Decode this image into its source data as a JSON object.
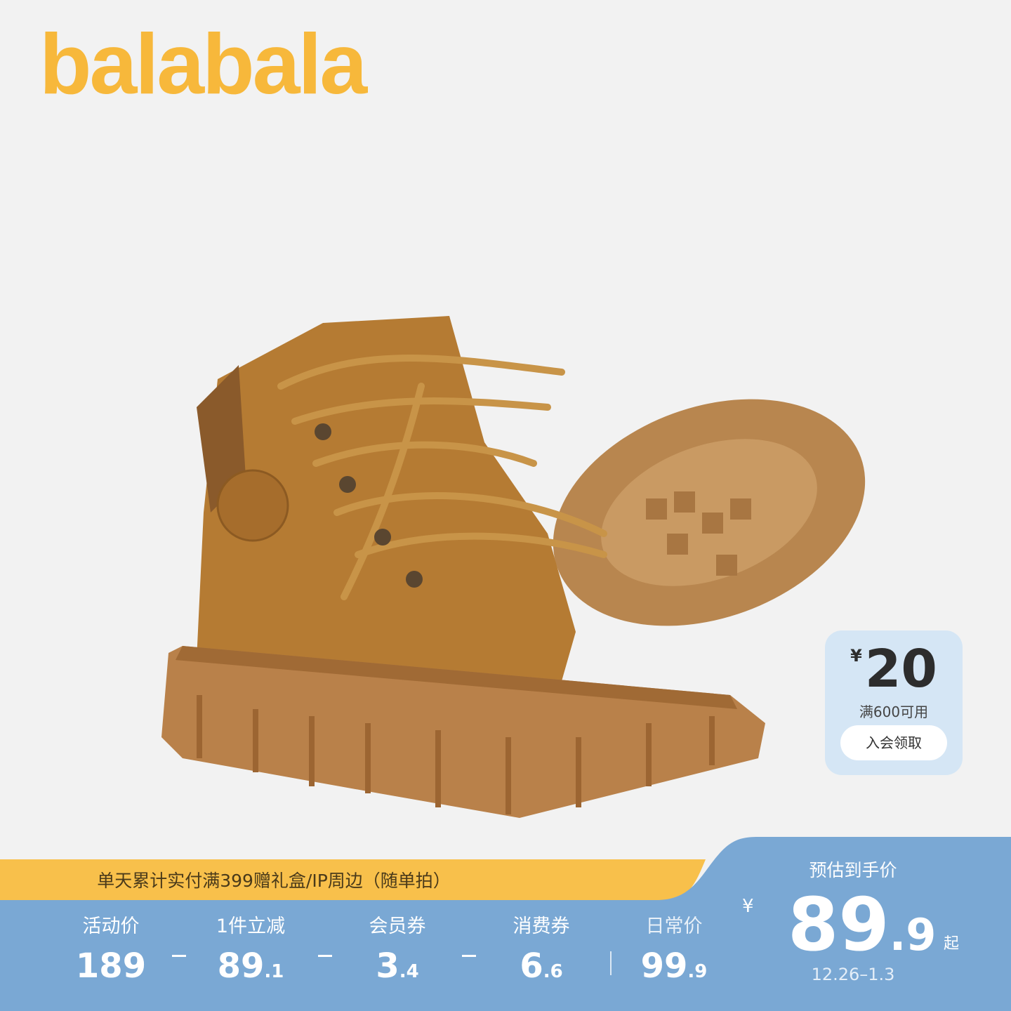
{
  "brand": {
    "logo_text": "balabala",
    "color": "#f7b83b"
  },
  "coupon": {
    "currency": "¥",
    "amount": "20",
    "condition": "满600可用",
    "button_label": "入会领取",
    "bg_color": "#d5e6f5"
  },
  "promo_banner": {
    "text": "单天累计实付满399赠礼盒/IP周边（随单拍）",
    "color": "#f8c04b"
  },
  "price_breakdown": [
    {
      "label": "活动价",
      "value": "189",
      "decimal": ""
    },
    {
      "label": "1件立减",
      "value": "89",
      "decimal": ".1"
    },
    {
      "label": "会员券",
      "value": "3",
      "decimal": ".4"
    },
    {
      "label": "消费券",
      "value": "6",
      "decimal": ".6"
    },
    {
      "label": "日常价",
      "value": "99",
      "decimal": ".9"
    }
  ],
  "estimate": {
    "label": "预估到手价",
    "currency": "¥",
    "price": "89",
    "decimal": ".9",
    "suffix": "起",
    "date_range": "12.26–1.3"
  },
  "panel_color": "#7aa8d4"
}
